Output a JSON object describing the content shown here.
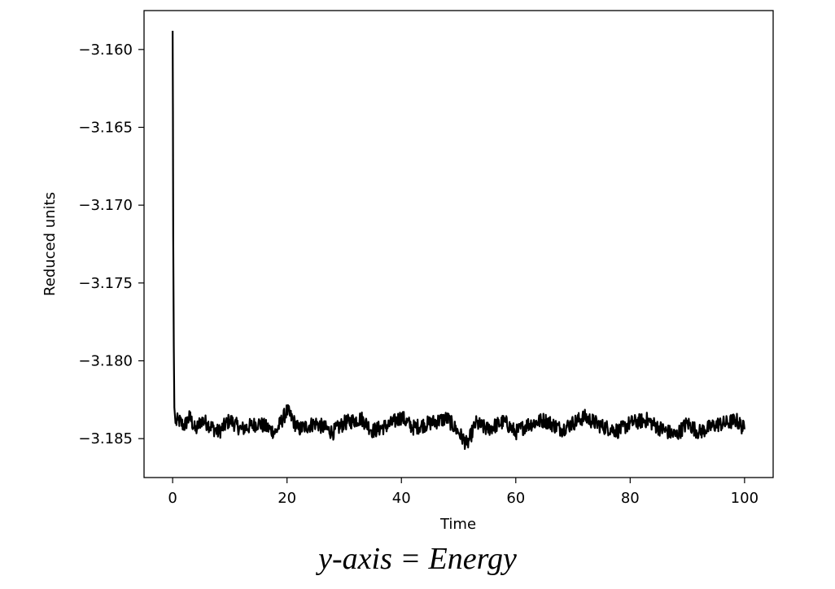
{
  "chart_data": {
    "type": "line",
    "xlabel": "Time",
    "ylabel": "Reduced units",
    "xlim": [
      -5,
      105
    ],
    "ylim": [
      -3.1875,
      -3.1575
    ],
    "xticks": [
      0,
      20,
      40,
      60,
      80,
      100
    ],
    "xtick_labels": [
      "0",
      "20",
      "40",
      "60",
      "80",
      "100"
    ],
    "yticks": [
      -3.16,
      -3.165,
      -3.17,
      -3.175,
      -3.18,
      -3.185
    ],
    "ytick_labels": [
      "−3.160",
      "−3.165",
      "−3.170",
      "−3.175",
      "−3.180",
      "−3.185"
    ],
    "series": [
      {
        "color": "#000000",
        "x": [
          0,
          0.05,
          0.1,
          0.2,
          0.3,
          0.5,
          1,
          2,
          3,
          4,
          5,
          6,
          8,
          10,
          12,
          15,
          18,
          20,
          22,
          25,
          28,
          30,
          33,
          35,
          38,
          40,
          42,
          45,
          48,
          50,
          51.5,
          53,
          55,
          58,
          60,
          62,
          65,
          68,
          70,
          72,
          75,
          78,
          80,
          83,
          85,
          88,
          90,
          92,
          95,
          97,
          98.5,
          100
        ],
        "y": [
          -3.1588,
          -3.164,
          -3.172,
          -3.179,
          -3.183,
          -3.184,
          -3.1838,
          -3.1842,
          -3.1836,
          -3.1845,
          -3.1838,
          -3.184,
          -3.1846,
          -3.1838,
          -3.1844,
          -3.184,
          -3.1846,
          -3.1832,
          -3.1844,
          -3.184,
          -3.1846,
          -3.184,
          -3.1837,
          -3.1845,
          -3.1841,
          -3.1836,
          -3.1843,
          -3.184,
          -3.1837,
          -3.1846,
          -3.1854,
          -3.184,
          -3.1844,
          -3.1839,
          -3.1846,
          -3.1841,
          -3.1838,
          -3.1844,
          -3.184,
          -3.1836,
          -3.1842,
          -3.1845,
          -3.184,
          -3.1838,
          -3.1843,
          -3.1848,
          -3.184,
          -3.1846,
          -3.1841,
          -3.184,
          -3.1838,
          -3.1844
        ],
        "noise_amplitude": 0.0005
      }
    ]
  },
  "caption": "y-axis = Energy"
}
